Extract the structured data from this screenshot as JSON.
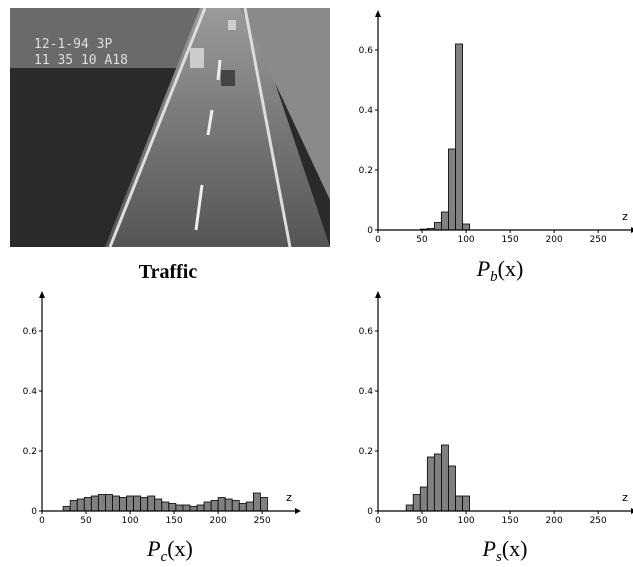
{
  "image": {
    "caption": "Traffic",
    "overlay_line1": "12-1-94 3P",
    "overlay_line2": "11 35 10 A18"
  },
  "chart_data": [
    {
      "type": "histogram",
      "caption": {
        "base": "P",
        "sub": "b",
        "arg": "(x)"
      },
      "xlabel": "z",
      "bins": [
        48,
        56,
        64,
        72,
        80,
        88,
        96,
        104
      ],
      "values": [
        0.003,
        0.005,
        0.025,
        0.06,
        0.27,
        0.62,
        0.02
      ],
      "color": "#808080",
      "xlim": [
        0,
        285
      ],
      "ylim": [
        0,
        0.7
      ],
      "xticks": [
        0,
        50,
        100,
        150,
        200,
        250
      ],
      "yticks": [
        0,
        0.2,
        0.4,
        0.6
      ]
    },
    {
      "type": "histogram",
      "caption": {
        "base": "P",
        "sub": "c",
        "arg": "(x)"
      },
      "xlabel": "z",
      "bins": [
        24,
        32,
        40,
        48,
        56,
        64,
        72,
        80,
        88,
        96,
        104,
        112,
        120,
        128,
        136,
        144,
        152,
        160,
        168,
        176,
        184,
        192,
        200,
        208,
        216,
        224,
        232,
        240,
        248,
        256
      ],
      "values": [
        0.015,
        0.035,
        0.04,
        0.045,
        0.05,
        0.055,
        0.055,
        0.05,
        0.045,
        0.05,
        0.05,
        0.045,
        0.05,
        0.04,
        0.03,
        0.025,
        0.02,
        0.02,
        0.015,
        0.02,
        0.03,
        0.035,
        0.045,
        0.04,
        0.035,
        0.025,
        0.03,
        0.06,
        0.045
      ],
      "color": "#808080",
      "xlim": [
        0,
        285
      ],
      "ylim": [
        0,
        0.7
      ],
      "xticks": [
        0,
        50,
        100,
        150,
        200,
        250
      ],
      "yticks": [
        0,
        0.2,
        0.4,
        0.6
      ]
    },
    {
      "type": "histogram",
      "caption": {
        "base": "P",
        "sub": "s",
        "arg": "(x)"
      },
      "xlabel": "z",
      "bins": [
        32,
        40,
        48,
        56,
        64,
        72,
        80,
        88,
        96,
        104
      ],
      "values": [
        0.02,
        0.055,
        0.08,
        0.18,
        0.19,
        0.22,
        0.15,
        0.05,
        0.05
      ],
      "color": "#808080",
      "xlim": [
        0,
        285
      ],
      "ylim": [
        0,
        0.7
      ],
      "xticks": [
        0,
        50,
        100,
        150,
        200,
        250
      ],
      "yticks": [
        0,
        0.2,
        0.4,
        0.6
      ]
    }
  ]
}
